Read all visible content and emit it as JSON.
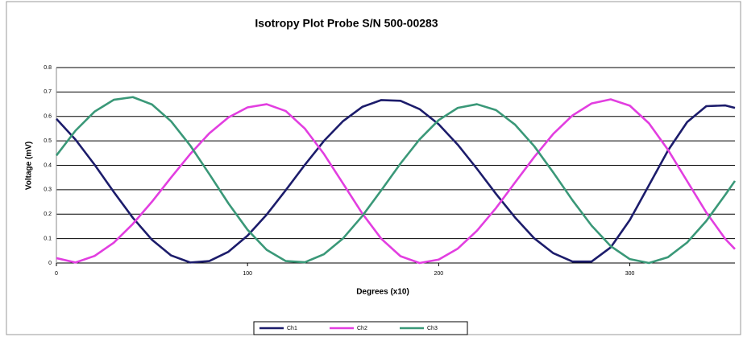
{
  "chart_data": {
    "type": "line",
    "title": "Isotropy Plot Probe S/N 500-00283",
    "x_label": "Degrees (x10)",
    "y_label": "Voltage (mV)",
    "x": [
      0,
      10,
      20,
      30,
      40,
      50,
      60,
      70,
      80,
      90,
      100,
      110,
      120,
      130,
      140,
      150,
      160,
      170,
      180,
      190,
      200,
      210,
      220,
      230,
      240,
      250,
      260,
      270,
      280,
      290,
      300,
      310,
      320,
      330,
      340,
      350,
      355
    ],
    "xlim": [
      0,
      355
    ],
    "xticks": [
      0,
      100,
      200,
      300
    ],
    "ylim": [
      0,
      0.8
    ],
    "yticks": [
      0,
      0.1,
      0.2,
      0.3,
      0.4,
      0.5,
      0.6,
      0.7,
      0.8
    ],
    "grid": true,
    "legend": "bottom",
    "series": [
      {
        "name": "Ch1",
        "color": "#1c1c6b",
        "values": [
          0.59,
          0.505,
          0.402,
          0.291,
          0.185,
          0.095,
          0.031,
          0.002,
          0.008,
          0.046,
          0.112,
          0.198,
          0.298,
          0.402,
          0.5,
          0.581,
          0.639,
          0.667,
          0.664,
          0.63,
          0.568,
          0.484,
          0.386,
          0.283,
          0.186,
          0.101,
          0.04,
          0.006,
          0.006,
          0.064,
          0.176,
          0.318,
          0.461,
          0.577,
          0.642,
          0.645,
          0.635
        ]
      },
      {
        "name": "Ch2",
        "color": "#e23ee0",
        "values": [
          0.02,
          0.002,
          0.029,
          0.083,
          0.16,
          0.251,
          0.35,
          0.446,
          0.531,
          0.596,
          0.637,
          0.65,
          0.622,
          0.55,
          0.446,
          0.325,
          0.203,
          0.099,
          0.028,
          0.0,
          0.014,
          0.059,
          0.132,
          0.225,
          0.33,
          0.434,
          0.529,
          0.604,
          0.653,
          0.67,
          0.644,
          0.572,
          0.463,
          0.335,
          0.207,
          0.098,
          0.057
        ]
      },
      {
        "name": "Ch3",
        "color": "#3a9878",
        "values": [
          0.44,
          0.542,
          0.62,
          0.668,
          0.679,
          0.649,
          0.58,
          0.481,
          0.364,
          0.244,
          0.136,
          0.054,
          0.008,
          0.003,
          0.036,
          0.101,
          0.192,
          0.298,
          0.407,
          0.506,
          0.585,
          0.635,
          0.65,
          0.626,
          0.566,
          0.478,
          0.37,
          0.257,
          0.153,
          0.069,
          0.016,
          0.0,
          0.024,
          0.084,
          0.172,
          0.28,
          0.336
        ]
      }
    ]
  }
}
